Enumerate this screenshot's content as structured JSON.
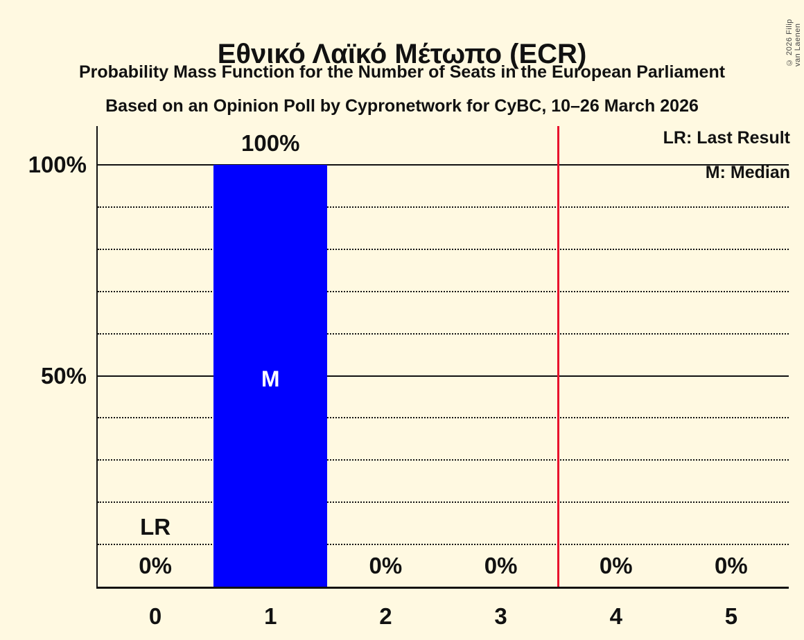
{
  "header": {
    "title": "Εθνικό Λαϊκό Μέτωπο (ECR)",
    "subtitle": "Probability Mass Function for the Number of Seats in the European Parliament",
    "poll_source": "Based on an Opinion Poll by Cypronetwork for CyBC, 10–26 March 2026"
  },
  "copyright": "© 2026 Filip van Laenen",
  "legend": {
    "lr": "LR: Last Result",
    "m": "M: Median"
  },
  "y_axis": {
    "ticks": [
      "100%",
      "50%"
    ]
  },
  "chart_data": {
    "type": "bar",
    "title": "Εθνικό Λαϊκό Μέτωπο (ECR)",
    "categories": [
      "0",
      "1",
      "2",
      "3",
      "4",
      "5"
    ],
    "values": [
      0,
      100,
      0,
      0,
      0,
      0
    ],
    "value_labels": [
      "0%",
      "100%",
      "0%",
      "0%",
      "0%",
      "0%"
    ],
    "xlabel": "",
    "ylabel": "",
    "ylim": [
      0,
      109
    ],
    "solid_gridlines_pct": [
      100,
      50
    ],
    "dotted_gridlines_pct": [
      90,
      80,
      70,
      60,
      40,
      30,
      20,
      10
    ],
    "grid": true,
    "legend_position": "top-right",
    "median": {
      "category": "1",
      "marker": "M"
    },
    "last_result": {
      "category": "0",
      "marker": "LR"
    },
    "vertical_line_at": 3.5,
    "colors": {
      "bar": "#0000FF",
      "median_text": "#FFFFFF",
      "vertical_line": "#E8112D",
      "background": "#FFF9E1",
      "text": "#111111"
    }
  }
}
